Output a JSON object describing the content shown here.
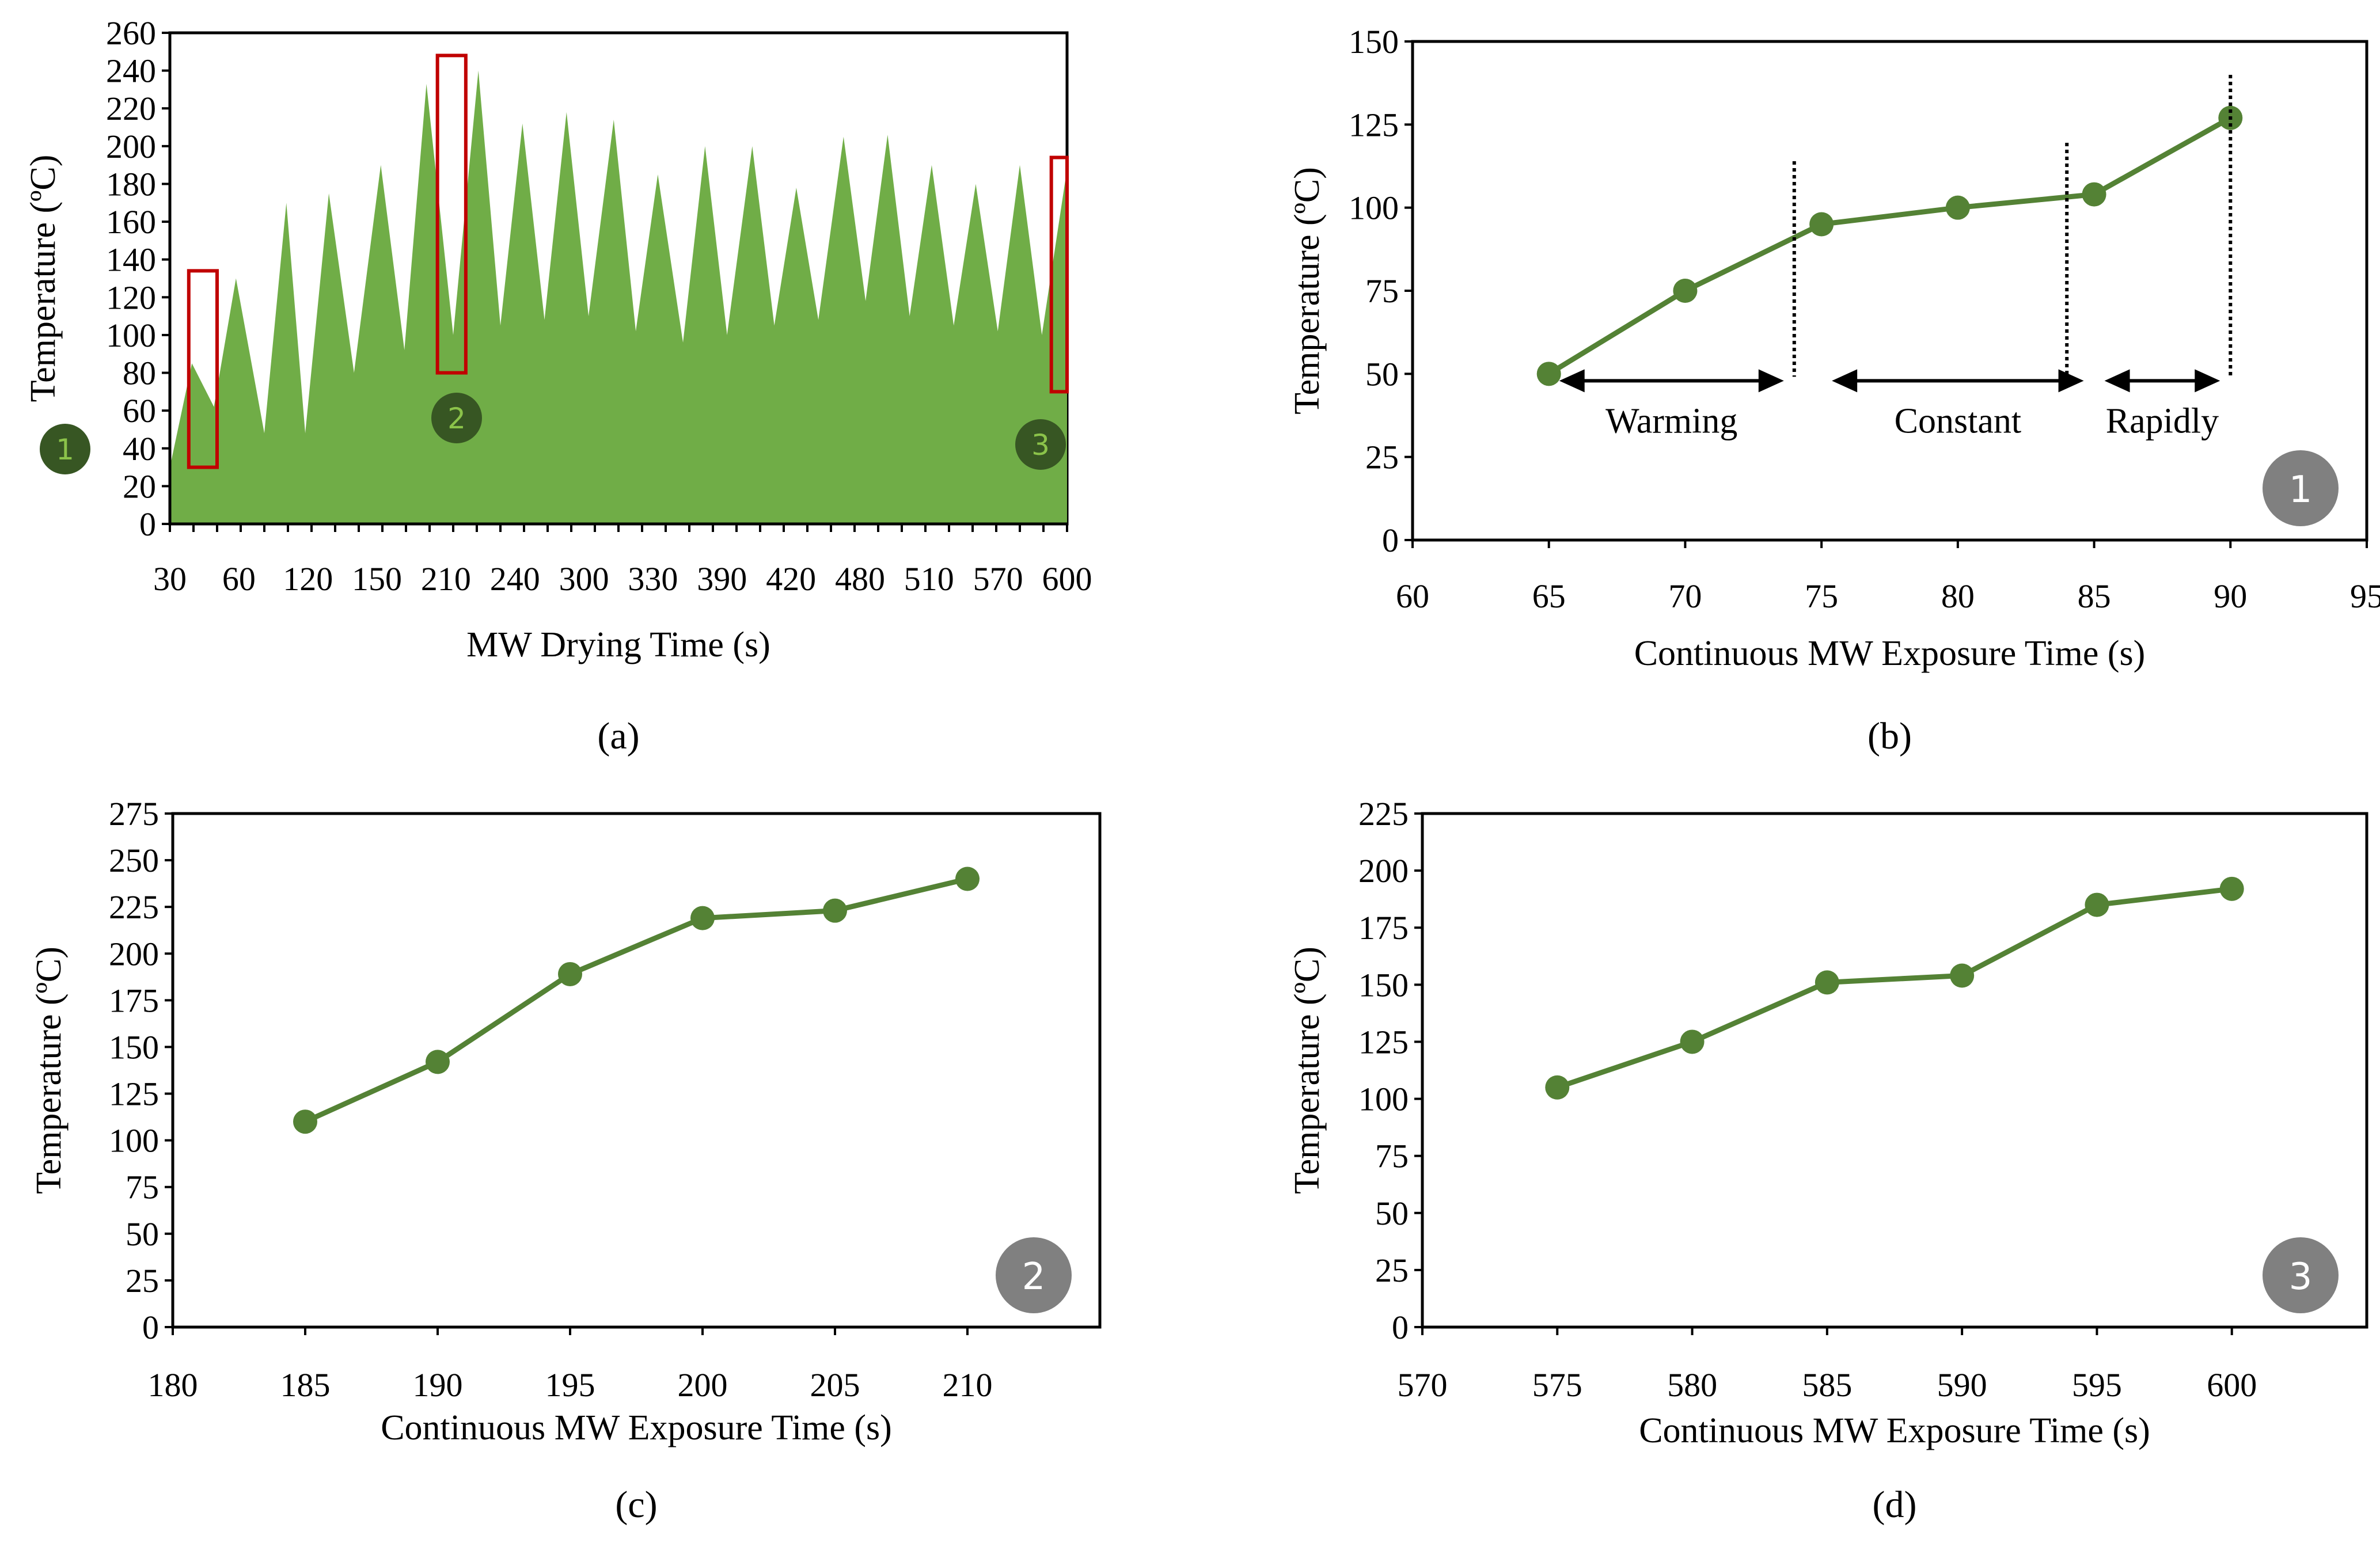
{
  "chart_data": [
    {
      "id": "a",
      "type": "area",
      "panel_label": "(a)",
      "xlabel": "MW Drying Time (s)",
      "ylabel": "Temperature (ºC)",
      "xlim": [
        30,
        600
      ],
      "ylim": [
        0,
        260
      ],
      "xticks": [
        30,
        60,
        120,
        150,
        210,
        240,
        300,
        330,
        390,
        420,
        480,
        510,
        570,
        600
      ],
      "yticks": [
        0,
        20,
        40,
        60,
        80,
        100,
        120,
        140,
        160,
        180,
        200,
        220,
        240,
        260
      ],
      "color": "#70ad47",
      "series": [
        {
          "x": [
            30,
            44,
            58,
            72,
            90,
            104,
            116,
            131,
            147,
            164,
            179,
            193,
            210,
            226,
            240,
            254,
            268,
            282,
            296,
            312,
            326,
            340,
            356,
            370,
            384,
            400,
            414,
            428,
            442,
            458,
            472,
            486,
            500,
            514,
            528,
            542,
            556,
            570,
            584,
            600
          ],
          "y": [
            30,
            85,
            62,
            130,
            48,
            170,
            48,
            175,
            80,
            190,
            92,
            233,
            100,
            240,
            105,
            212,
            108,
            218,
            110,
            214,
            102,
            185,
            96,
            200,
            100,
            200,
            105,
            178,
            108,
            205,
            118,
            206,
            110,
            190,
            105,
            180,
            102,
            190,
            100,
            188
          ]
        }
      ],
      "badges": [
        "1",
        "2",
        "3"
      ]
    },
    {
      "id": "b",
      "type": "line",
      "panel_label": "(b)",
      "xlabel": "Continuous MW Exposure Time (s)",
      "ylabel": "Temperature (ºC)",
      "xlim": [
        60,
        95
      ],
      "ylim": [
        0,
        150
      ],
      "xticks": [
        60,
        65,
        70,
        75,
        80,
        85,
        90,
        95
      ],
      "yticks": [
        0,
        25,
        50,
        75,
        100,
        125,
        150
      ],
      "color": "#548235",
      "series": [
        {
          "x": [
            65,
            70,
            75,
            80,
            85,
            90
          ],
          "y": [
            50,
            75,
            95,
            100,
            104,
            127
          ]
        }
      ],
      "phases": [
        {
          "label": "Warming",
          "from": 65,
          "to": 74
        },
        {
          "label": "Constant",
          "from": 75,
          "to": 85
        },
        {
          "label": "Rapidly",
          "from": 85,
          "to": 90
        }
      ],
      "dotted_lines": [
        74,
        84,
        90
      ],
      "badge": "1"
    },
    {
      "id": "c",
      "type": "line",
      "panel_label": "(c)",
      "xlabel": "Continuous MW Exposure Time (s)",
      "ylabel": "Temperature (ºC)",
      "xlim": [
        180,
        215
      ],
      "ylim": [
        0,
        275
      ],
      "xticks": [
        180,
        185,
        190,
        195,
        200,
        205,
        210
      ],
      "yticks": [
        0,
        25,
        50,
        75,
        100,
        125,
        150,
        175,
        200,
        225,
        250,
        275
      ],
      "color": "#548235",
      "series": [
        {
          "x": [
            185,
            190,
            195,
            200,
            205,
            210
          ],
          "y": [
            110,
            142,
            189,
            219,
            223,
            240
          ]
        }
      ],
      "badge": "2"
    },
    {
      "id": "d",
      "type": "line",
      "panel_label": "(d)",
      "xlabel": "Continuous MW Exposure Time (s)",
      "ylabel": "Temperature (ºC)",
      "xlim": [
        570,
        605
      ],
      "ylim": [
        0,
        225
      ],
      "xticks": [
        570,
        575,
        580,
        585,
        590,
        595,
        600
      ],
      "yticks": [
        0,
        25,
        50,
        75,
        100,
        125,
        150,
        175,
        200,
        225
      ],
      "color": "#548235",
      "series": [
        {
          "x": [
            575,
            580,
            585,
            590,
            595,
            600
          ],
          "y": [
            105,
            125,
            151,
            154,
            185,
            192
          ]
        }
      ],
      "badge": "3"
    }
  ]
}
